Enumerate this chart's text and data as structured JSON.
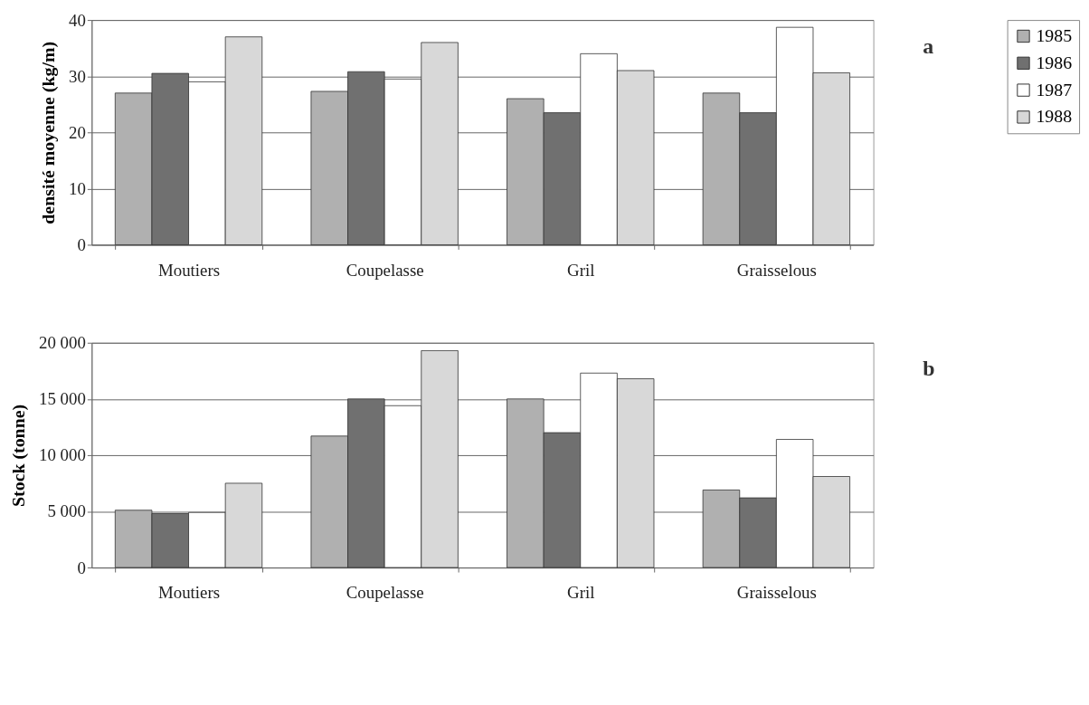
{
  "chart_data": [
    {
      "type": "bar",
      "ylabel": "densité moyenne  (kg/m)",
      "annotations": [
        "a"
      ],
      "categories": [
        "Moutiers",
        "Coupelasse",
        "Gril",
        "Graisselous"
      ],
      "series": [
        {
          "name": "1985",
          "color": "#b0b0b0",
          "values": [
            27,
            27.3,
            26,
            27
          ]
        },
        {
          "name": "1986",
          "color": "#707070",
          "values": [
            30.5,
            30.8,
            23.5,
            23.5
          ]
        },
        {
          "name": "1987",
          "color": "#ffffff",
          "values": [
            29,
            29.5,
            34,
            38.7
          ]
        },
        {
          "name": "1988",
          "color": "#d8d8d8",
          "values": [
            37,
            36,
            31,
            30.6
          ]
        }
      ],
      "ylim": [
        0,
        40
      ],
      "yticks": [
        0,
        10,
        20,
        30,
        40
      ],
      "grid": "y",
      "legend": "right"
    },
    {
      "type": "bar",
      "ylabel": "Stock  (tonne)",
      "annotations": [
        "b"
      ],
      "categories": [
        "Moutiers",
        "Coupelasse",
        "Gril",
        "Graisselous"
      ],
      "series": [
        {
          "name": "1985",
          "color": "#b0b0b0",
          "values": [
            5100,
            11700,
            15000,
            6900
          ]
        },
        {
          "name": "1986",
          "color": "#707070",
          "values": [
            4800,
            15000,
            12000,
            6200
          ]
        },
        {
          "name": "1987",
          "color": "#ffffff",
          "values": [
            4900,
            14400,
            17300,
            11400
          ]
        },
        {
          "name": "1988",
          "color": "#d8d8d8",
          "values": [
            7500,
            19300,
            16800,
            8100
          ]
        }
      ],
      "ylim": [
        0,
        20000
      ],
      "yticks": [
        0,
        {
          "value": 5000,
          "label": "5 000"
        },
        {
          "value": 10000,
          "label": "10 000"
        },
        {
          "value": 15000,
          "label": "15 000"
        },
        {
          "value": 20000,
          "label": "20 000"
        }
      ],
      "grid": "y",
      "legend": "right"
    }
  ]
}
